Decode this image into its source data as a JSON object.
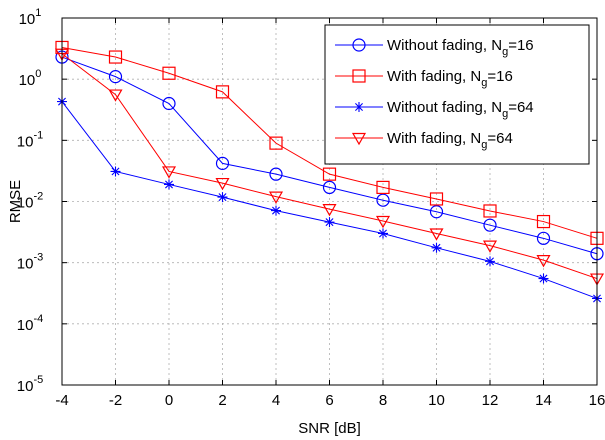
{
  "chart_data": {
    "type": "line",
    "xlabel": "SNR [dB]",
    "ylabel": "RMSE",
    "yscale": "log",
    "xlim": [
      -4,
      16
    ],
    "ylim": [
      1e-05,
      10
    ],
    "grid": true,
    "legend_position": "top-right",
    "x_ticks": [
      -4,
      -2,
      0,
      2,
      4,
      6,
      8,
      10,
      12,
      14,
      16
    ],
    "y_ticks": [
      {
        "base": "10",
        "exp": "-5",
        "value": 1e-05
      },
      {
        "base": "10",
        "exp": "-4",
        "value": 0.0001
      },
      {
        "base": "10",
        "exp": "-3",
        "value": 0.001
      },
      {
        "base": "10",
        "exp": "-2",
        "value": 0.01
      },
      {
        "base": "10",
        "exp": "-1",
        "value": 0.1
      },
      {
        "base": "10",
        "exp": "0",
        "value": 1
      },
      {
        "base": "10",
        "exp": "1",
        "value": 10
      }
    ],
    "x": [
      -4,
      -2,
      0,
      2,
      4,
      6,
      8,
      10,
      12,
      14,
      16
    ],
    "series": [
      {
        "name": "Without fading, N",
        "name_sub": "g",
        "name_suffix": "=16",
        "color": "#0000ff",
        "marker": "circle",
        "values": [
          2.3,
          1.1,
          0.4,
          0.042,
          0.028,
          0.017,
          0.0105,
          0.0068,
          0.0041,
          0.0025,
          0.0014
        ]
      },
      {
        "name": "With fading, N",
        "name_sub": "g",
        "name_suffix": "=16",
        "color": "#ff0000",
        "marker": "square",
        "values": [
          3.3,
          2.3,
          1.25,
          0.62,
          0.09,
          0.028,
          0.017,
          0.011,
          0.007,
          0.0047,
          0.0025
        ]
      },
      {
        "name": "Without fading, N",
        "name_sub": "g",
        "name_suffix": "=64",
        "color": "#0000ff",
        "marker": "asterisk",
        "values": [
          0.43,
          0.031,
          0.019,
          0.0118,
          0.0071,
          0.0046,
          0.003,
          0.00175,
          0.00105,
          0.00055,
          0.00026
        ]
      },
      {
        "name": "With fading, N",
        "name_sub": "g",
        "name_suffix": "=64",
        "color": "#ff0000",
        "marker": "triangle-down",
        "values": [
          2.6,
          0.56,
          0.031,
          0.02,
          0.012,
          0.0075,
          0.0048,
          0.003,
          0.0019,
          0.0011,
          0.00055
        ]
      }
    ]
  }
}
